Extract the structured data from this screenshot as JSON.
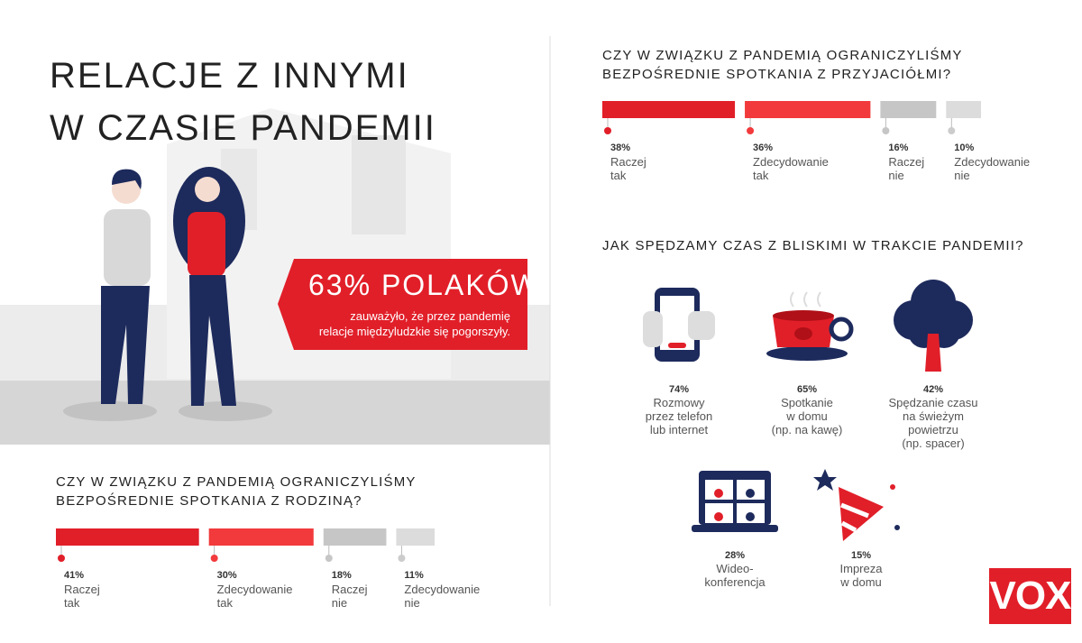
{
  "header": {
    "title": "RELACJE Z INNYMI\nW CZASIE PANDEMII"
  },
  "highlight": {
    "headline": "63% POLAKÓW",
    "text": "zauważyło, że przez pandemię\nrelacje międzyludzkie się pogorszyły."
  },
  "logo": "VOX",
  "chart_data": [
    {
      "type": "bar",
      "title": "CZY W ZWIĄZKU Z PANDEMIĄ OGRANICZYLIŚMY\nBEZPOŚREDNIE SPOTKANIA Z RODZINĄ?",
      "categories": [
        "Raczej\ntak",
        "Zdecydowanie\ntak",
        "Raczej\nnie",
        "Zdecydowanie\nnie"
      ],
      "values": [
        41,
        30,
        18,
        11
      ],
      "value_labels": [
        "41%",
        "30%",
        "18%",
        "11%"
      ],
      "colors": [
        "#e11f29",
        "#f23a3c",
        "#c6c6c6",
        "#dcdcdc"
      ]
    },
    {
      "type": "bar",
      "title": "CZY W ZWIĄZKU Z PANDEMIĄ OGRANICZYLIŚMY\nBEZPOŚREDNIE SPOTKANIA Z PRZYJACIÓŁMI?",
      "categories": [
        "Raczej\ntak",
        "Zdecydowanie\ntak",
        "Raczej\nnie",
        "Zdecydowanie\nnie"
      ],
      "values": [
        38,
        36,
        16,
        10
      ],
      "value_labels": [
        "38%",
        "36%",
        "16%",
        "10%"
      ],
      "colors": [
        "#e11f29",
        "#f23a3c",
        "#c6c6c6",
        "#dcdcdc"
      ]
    },
    {
      "type": "pictogram",
      "title": "JAK SPĘDZAMY CZAS Z BLISKIMI W TRAKCIE PANDEMII?",
      "categories": [
        "Rozmowy\nprzez telefon\nlub internet",
        "Spotkanie\nw domu\n(np. na kawę)",
        "Spędzanie czasu\nna świeżym\npowietrzu\n(np. spacer)",
        "Wideo-\nkonferencja",
        "Impreza\nw domu"
      ],
      "values": [
        74,
        65,
        42,
        28,
        15
      ],
      "value_labels": [
        "74%",
        "65%",
        "42%",
        "28%",
        "15%"
      ]
    }
  ]
}
